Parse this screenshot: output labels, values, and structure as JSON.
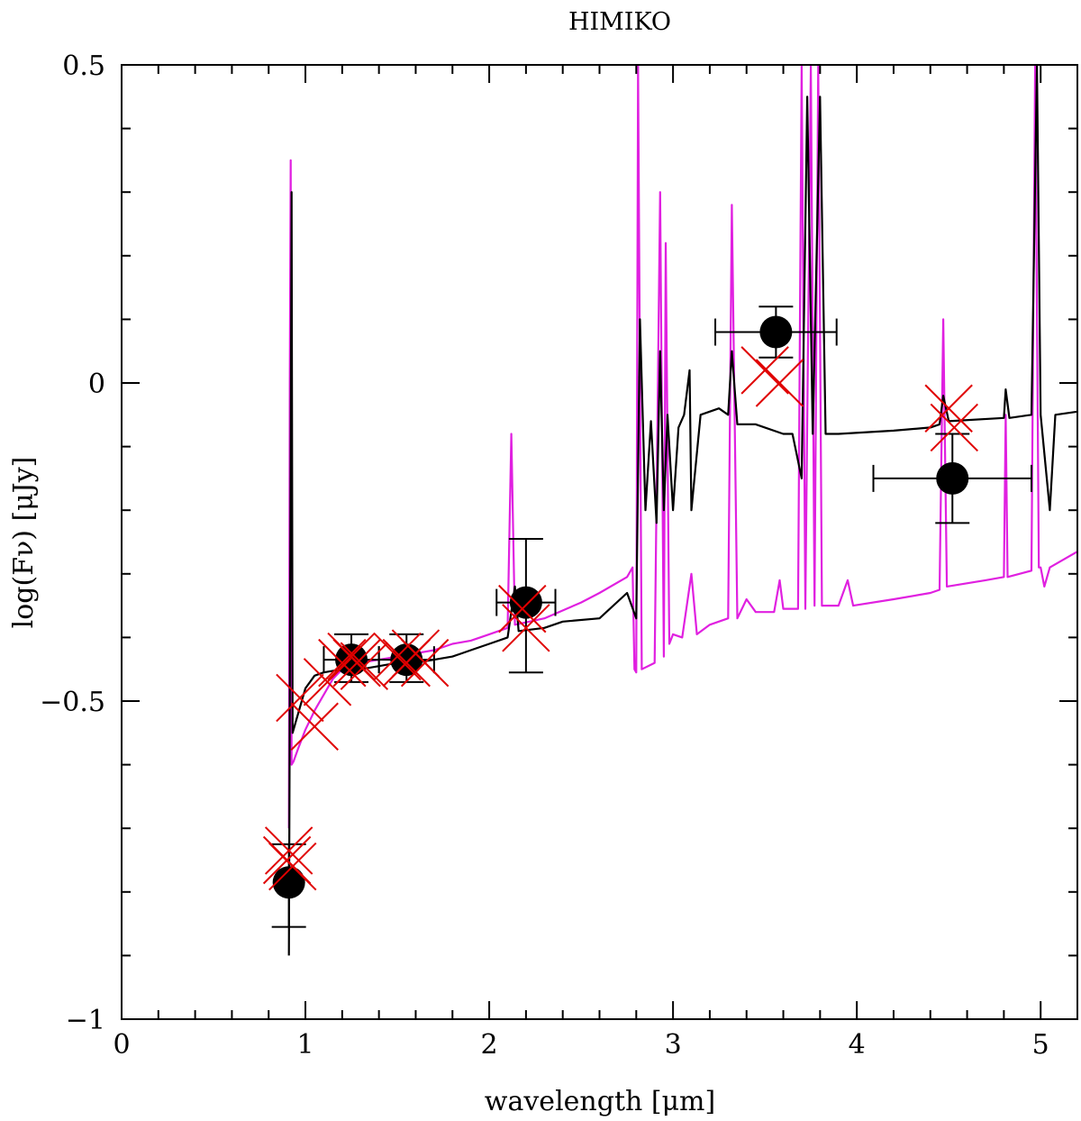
{
  "chart_data": {
    "type": "scatter",
    "title": "HIMIKO",
    "xlabel": "wavelength [μm]",
    "ylabel": "log(Fν) [μJy]",
    "xlim": [
      0,
      5.2
    ],
    "ylim": [
      -1,
      0.5
    ],
    "x_ticks": [
      0,
      1,
      2,
      3,
      4,
      5
    ],
    "y_ticks": [
      -1,
      -0.5,
      0,
      0.5
    ],
    "x_tick_labels": [
      "0",
      "1",
      "2",
      "3",
      "4",
      "5"
    ],
    "y_tick_labels": [
      "−1",
      "−0.5",
      "0",
      "0.5"
    ],
    "x_minor_step": 0.2,
    "y_minor_step": 0.1,
    "grid": false,
    "series": [
      {
        "kind": "observed",
        "color": "#000000",
        "points": [
          {
            "x": 0.91,
            "y": -0.785,
            "xerr": [
              0.0,
              0.0
            ],
            "yerr": [
              0.07,
              0.06
            ]
          },
          {
            "x": 1.25,
            "y": -0.435,
            "xerr": [
              0.15,
              0.15
            ],
            "yerr": [
              0.035,
              0.04
            ]
          },
          {
            "x": 1.55,
            "y": -0.435,
            "xerr": [
              0.15,
              0.15
            ],
            "yerr": [
              0.035,
              0.04
            ]
          },
          {
            "x": 2.2,
            "y": -0.345,
            "xerr": [
              0.16,
              0.16
            ],
            "yerr": [
              0.11,
              0.1
            ]
          },
          {
            "x": 3.56,
            "y": 0.08,
            "xerr": [
              0.33,
              0.33
            ],
            "yerr": [
              0.04,
              0.04
            ]
          },
          {
            "x": 4.52,
            "y": -0.15,
            "xerr": [
              0.43,
              0.43
            ],
            "yerr": [
              0.07,
              0.07
            ]
          }
        ]
      },
      {
        "kind": "model_photometry",
        "color": "#e00000",
        "points": [
          {
            "x": 0.9,
            "y": -0.75
          },
          {
            "x": 0.91,
            "y": -0.735
          },
          {
            "x": 0.93,
            "y": -0.76
          },
          {
            "x": 0.97,
            "y": -0.495
          },
          {
            "x": 1.05,
            "y": -0.54
          },
          {
            "x": 1.12,
            "y": -0.47
          },
          {
            "x": 1.2,
            "y": -0.44
          },
          {
            "x": 1.25,
            "y": -0.43
          },
          {
            "x": 1.28,
            "y": -0.44
          },
          {
            "x": 1.32,
            "y": -0.445
          },
          {
            "x": 1.5,
            "y": -0.43
          },
          {
            "x": 1.55,
            "y": -0.44
          },
          {
            "x": 1.6,
            "y": -0.425
          },
          {
            "x": 1.65,
            "y": -0.44
          },
          {
            "x": 2.18,
            "y": -0.355
          },
          {
            "x": 2.2,
            "y": -0.385
          },
          {
            "x": 3.5,
            "y": 0.02
          },
          {
            "x": 3.58,
            "y": 0.0
          },
          {
            "x": 4.5,
            "y": -0.04
          },
          {
            "x": 4.53,
            "y": -0.07
          }
        ]
      },
      {
        "kind": "model_spectrum",
        "color": "#e020e0",
        "points": [
          [
            0.91,
            -0.7
          ],
          [
            0.915,
            0.0
          ],
          [
            0.92,
            0.35
          ],
          [
            0.925,
            -0.6
          ],
          [
            0.935,
            -0.595
          ],
          [
            0.96,
            -0.575
          ],
          [
            1.0,
            -0.545
          ],
          [
            1.05,
            -0.515
          ],
          [
            1.1,
            -0.49
          ],
          [
            1.15,
            -0.465
          ],
          [
            1.2,
            -0.45
          ],
          [
            1.3,
            -0.44
          ],
          [
            1.4,
            -0.435
          ],
          [
            1.5,
            -0.43
          ],
          [
            1.6,
            -0.425
          ],
          [
            1.7,
            -0.42
          ],
          [
            1.8,
            -0.41
          ],
          [
            1.9,
            -0.405
          ],
          [
            2.0,
            -0.395
          ],
          [
            2.1,
            -0.385
          ],
          [
            2.12,
            -0.08
          ],
          [
            2.14,
            -0.38
          ],
          [
            2.3,
            -0.37
          ],
          [
            2.5,
            -0.345
          ],
          [
            2.6,
            -0.33
          ],
          [
            2.75,
            -0.305
          ],
          [
            2.78,
            -0.29
          ],
          [
            2.79,
            -0.45
          ],
          [
            2.8,
            -0.455
          ],
          [
            2.81,
            0.5
          ],
          [
            2.83,
            -0.45
          ],
          [
            2.9,
            -0.44
          ],
          [
            2.93,
            0.3
          ],
          [
            2.95,
            -0.43
          ],
          [
            2.96,
            0.22
          ],
          [
            2.98,
            -0.41
          ],
          [
            3.0,
            -0.395
          ],
          [
            3.05,
            -0.4
          ],
          [
            3.1,
            -0.3
          ],
          [
            3.13,
            -0.395
          ],
          [
            3.2,
            -0.38
          ],
          [
            3.3,
            -0.37
          ],
          [
            3.32,
            0.28
          ],
          [
            3.35,
            -0.37
          ],
          [
            3.4,
            -0.34
          ],
          [
            3.45,
            -0.36
          ],
          [
            3.55,
            -0.36
          ],
          [
            3.58,
            -0.31
          ],
          [
            3.6,
            -0.355
          ],
          [
            3.68,
            -0.355
          ],
          [
            3.7,
            0.5
          ],
          [
            3.72,
            -0.355
          ],
          [
            3.75,
            0.5
          ],
          [
            3.77,
            -0.35
          ],
          [
            3.79,
            0.5
          ],
          [
            3.81,
            -0.35
          ],
          [
            3.9,
            -0.35
          ],
          [
            3.95,
            -0.31
          ],
          [
            3.98,
            -0.35
          ],
          [
            4.2,
            -0.34
          ],
          [
            4.4,
            -0.33
          ],
          [
            4.45,
            -0.325
          ],
          [
            4.47,
            0.1
          ],
          [
            4.49,
            -0.32
          ],
          [
            4.7,
            -0.31
          ],
          [
            4.8,
            -0.305
          ],
          [
            4.81,
            -0.05
          ],
          [
            4.82,
            -0.305
          ],
          [
            4.95,
            -0.295
          ],
          [
            4.97,
            0.5
          ],
          [
            4.99,
            -0.29
          ],
          [
            5.0,
            -0.29
          ],
          [
            5.02,
            -0.32
          ],
          [
            5.05,
            -0.29
          ],
          [
            5.2,
            -0.265
          ]
        ]
      },
      {
        "kind": "model_spectrum",
        "color": "#000000",
        "points": [
          [
            0.91,
            -0.9
          ],
          [
            0.925,
            0.3
          ],
          [
            0.93,
            -0.55
          ],
          [
            0.96,
            -0.52
          ],
          [
            1.0,
            -0.48
          ],
          [
            1.05,
            -0.46
          ],
          [
            1.1,
            -0.455
          ],
          [
            1.2,
            -0.45
          ],
          [
            1.3,
            -0.45
          ],
          [
            1.4,
            -0.445
          ],
          [
            1.5,
            -0.44
          ],
          [
            1.6,
            -0.44
          ],
          [
            1.7,
            -0.435
          ],
          [
            1.8,
            -0.43
          ],
          [
            1.9,
            -0.42
          ],
          [
            2.0,
            -0.41
          ],
          [
            2.1,
            -0.4
          ],
          [
            2.14,
            -0.32
          ],
          [
            2.16,
            -0.39
          ],
          [
            2.3,
            -0.385
          ],
          [
            2.4,
            -0.375
          ],
          [
            2.6,
            -0.37
          ],
          [
            2.75,
            -0.33
          ],
          [
            2.8,
            -0.37
          ],
          [
            2.82,
            0.1
          ],
          [
            2.85,
            -0.2
          ],
          [
            2.88,
            -0.06
          ],
          [
            2.91,
            -0.22
          ],
          [
            2.93,
            0.05
          ],
          [
            2.95,
            -0.2
          ],
          [
            2.97,
            -0.05
          ],
          [
            3.0,
            -0.2
          ],
          [
            3.03,
            -0.07
          ],
          [
            3.06,
            -0.05
          ],
          [
            3.09,
            0.02
          ],
          [
            3.1,
            -0.2
          ],
          [
            3.15,
            -0.05
          ],
          [
            3.25,
            -0.04
          ],
          [
            3.3,
            -0.05
          ],
          [
            3.32,
            0.05
          ],
          [
            3.35,
            -0.065
          ],
          [
            3.45,
            -0.065
          ],
          [
            3.6,
            -0.08
          ],
          [
            3.65,
            -0.08
          ],
          [
            3.7,
            -0.15
          ],
          [
            3.73,
            0.45
          ],
          [
            3.76,
            -0.08
          ],
          [
            3.8,
            0.45
          ],
          [
            3.83,
            -0.08
          ],
          [
            3.9,
            -0.08
          ],
          [
            4.2,
            -0.075
          ],
          [
            4.4,
            -0.07
          ],
          [
            4.45,
            -0.065
          ],
          [
            4.47,
            -0.02
          ],
          [
            4.5,
            -0.06
          ],
          [
            4.8,
            -0.055
          ],
          [
            4.81,
            -0.01
          ],
          [
            4.83,
            -0.055
          ],
          [
            4.95,
            -0.05
          ],
          [
            4.98,
            0.5
          ],
          [
            5.0,
            -0.05
          ],
          [
            5.05,
            -0.2
          ],
          [
            5.08,
            -0.05
          ],
          [
            5.2,
            -0.045
          ]
        ]
      }
    ]
  }
}
